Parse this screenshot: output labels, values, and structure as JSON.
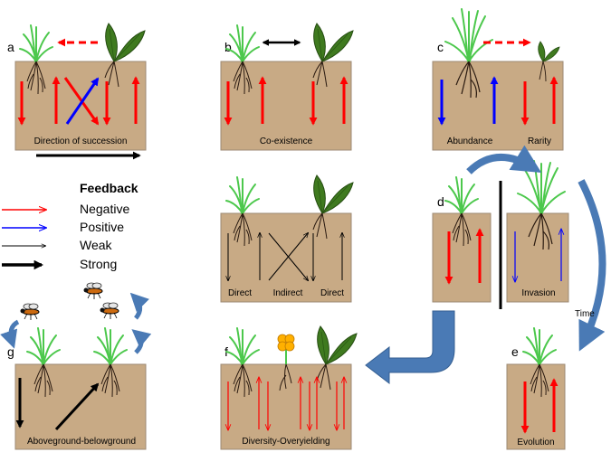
{
  "legend": {
    "title": "Feedback",
    "items": [
      {
        "label": "Negative",
        "color": "#ff0000"
      },
      {
        "label": "Positive",
        "color": "#0000ff"
      },
      {
        "label": "Weak",
        "color": "#000000"
      },
      {
        "label": "Strong",
        "color": "#000000"
      }
    ]
  },
  "panels": {
    "a": {
      "letter": "a",
      "caption": "Direction of succession"
    },
    "b": {
      "letter": "b",
      "caption": "Co-existence"
    },
    "c": {
      "letter": "c",
      "caption_left": "Abundance",
      "caption_right": "Rarity"
    },
    "mid": {
      "caption_left": "Direct",
      "caption_center": "Indirect",
      "caption_right": "Direct"
    },
    "d": {
      "letter": "d",
      "caption_right": "Invasion"
    },
    "e": {
      "letter": "e",
      "caption": "Evolution"
    },
    "f": {
      "letter": "f",
      "caption": "Diversity-Overyielding"
    },
    "g": {
      "letter": "g",
      "caption": "Aboveground-belowground"
    },
    "time_label": "Time"
  },
  "colors": {
    "soil": "#c8aa85",
    "soil_border": "#9d8a74",
    "grass": "#4cc84c",
    "leaf": "#3f7a1f",
    "red": "#ff0000",
    "blue": "#0000ff",
    "flow_arrow": "#4a7ab5",
    "flower": "#ffb000"
  }
}
